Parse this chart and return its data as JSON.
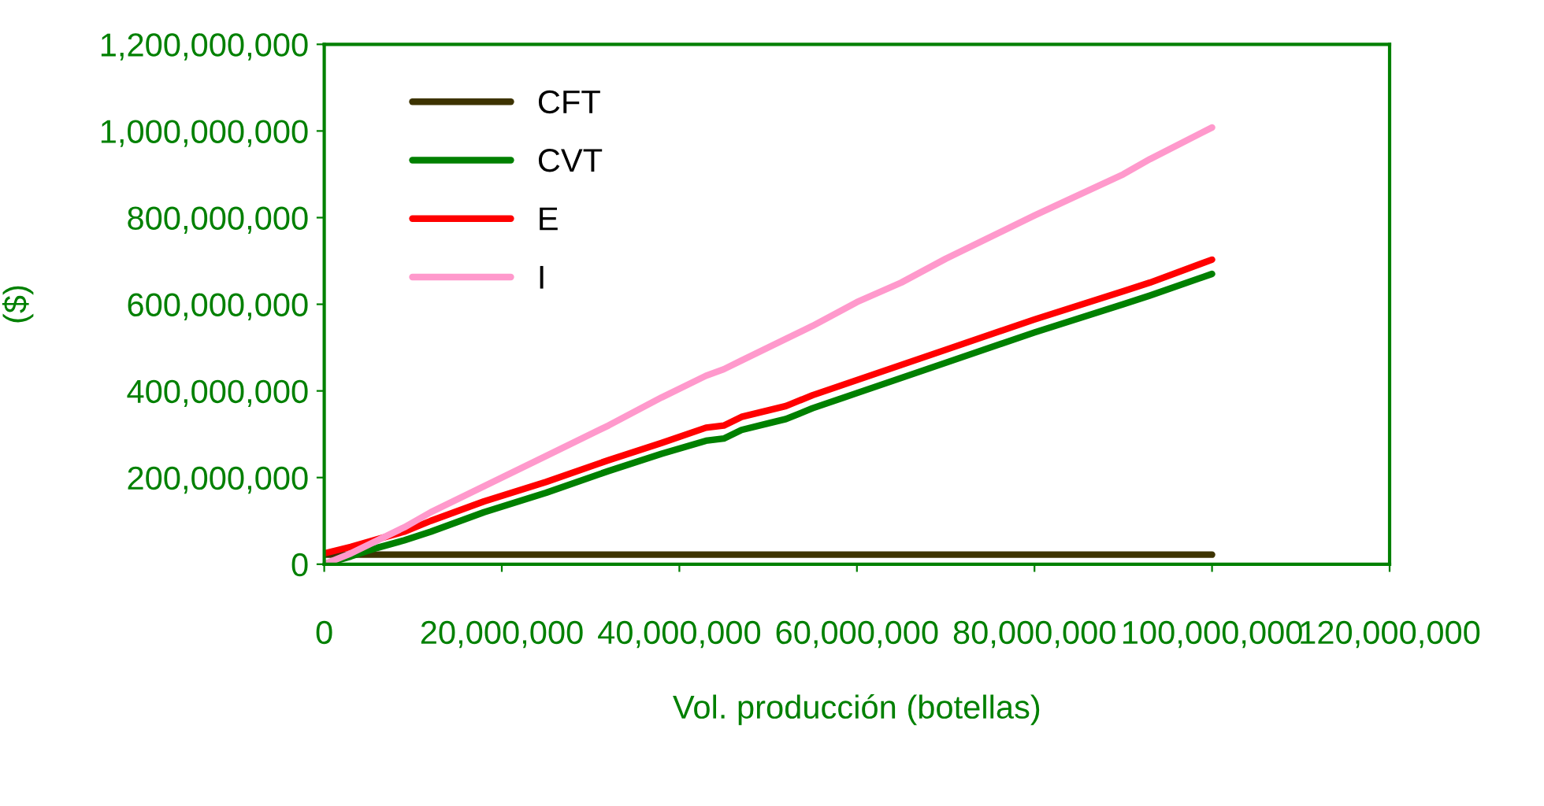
{
  "chart_data": {
    "type": "line",
    "xlabel": "Vol. producción (botellas)",
    "ylabel": "($)",
    "x": [
      0,
      3000000,
      6000000,
      9000000,
      12000000,
      18000000,
      25000000,
      32000000,
      38000000,
      43000000,
      45000000,
      47000000,
      50000000,
      52000000,
      55000000,
      60000000,
      65000000,
      70000000,
      80000000,
      90000000,
      93000000,
      100000000
    ],
    "series": [
      {
        "name": "CFT",
        "color": "#3d3300",
        "values": [
          22000000,
          22000000,
          22000000,
          22000000,
          22000000,
          22000000,
          22000000,
          22000000,
          22000000,
          22000000,
          22000000,
          22000000,
          22000000,
          22000000,
          22000000,
          22000000,
          22000000,
          22000000,
          22000000,
          22000000,
          22000000,
          22000000
        ]
      },
      {
        "name": "CVT",
        "color": "#008000",
        "values": [
          0,
          18000000,
          38000000,
          55000000,
          75000000,
          120000000,
          165000000,
          215000000,
          255000000,
          285000000,
          290000000,
          310000000,
          325000000,
          335000000,
          360000000,
          395000000,
          430000000,
          465000000,
          535000000,
          600000000,
          620000000,
          670000000
        ]
      },
      {
        "name": "E",
        "color": "#ff0000",
        "values": [
          25000000,
          40000000,
          58000000,
          75000000,
          100000000,
          145000000,
          190000000,
          240000000,
          280000000,
          315000000,
          320000000,
          340000000,
          355000000,
          365000000,
          390000000,
          425000000,
          460000000,
          495000000,
          565000000,
          630000000,
          650000000,
          703000000
        ]
      },
      {
        "name": "I",
        "color": "#ff99cc",
        "values": [
          0,
          25000000,
          55000000,
          85000000,
          120000000,
          180000000,
          250000000,
          320000000,
          385000000,
          435000000,
          450000000,
          470000000,
          500000000,
          520000000,
          550000000,
          605000000,
          650000000,
          705000000,
          805000000,
          900000000,
          935000000,
          1008000000
        ]
      }
    ],
    "xlim": [
      0,
      120000000
    ],
    "xticks": [
      0,
      {
        "value": 20000000,
        "label": "20,000,000"
      },
      {
        "value": 40000000,
        "label": "40,000,000"
      },
      {
        "value": 60000000,
        "label": "60,000,000"
      },
      {
        "value": 80000000,
        "label": "80,000,000"
      },
      {
        "value": 100000000,
        "label": "100,000,000"
      },
      {
        "value": 120000000,
        "label": "120,000,000"
      }
    ],
    "ylim": [
      0,
      1200000000
    ],
    "yticks": [
      0,
      {
        "value": 200000000,
        "label": "200,000,000"
      },
      {
        "value": 400000000,
        "label": "400,000,000"
      },
      {
        "value": 600000000,
        "label": "600,000,000"
      },
      {
        "value": 800000000,
        "label": "800,000,000"
      },
      {
        "value": 1000000000,
        "label": "1,000,000,000"
      },
      {
        "value": 1200000000,
        "label": "1,200,000,000"
      }
    ],
    "grid": false,
    "legend": "top left",
    "marker": "none",
    "line_style": "solid"
  }
}
